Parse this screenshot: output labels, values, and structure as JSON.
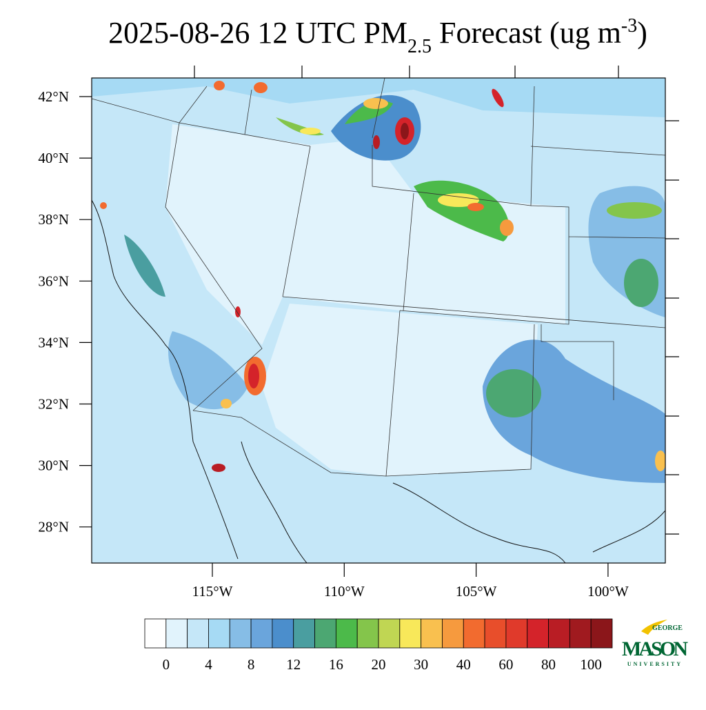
{
  "title": {
    "main": "2025-08-26 12 UTC PM",
    "sub": "2.5",
    "rest": " Forecast (ug m",
    "sup": "-3",
    "end": ")"
  },
  "map": {
    "lat_labels": [
      "42°N",
      "40°N",
      "38°N",
      "36°N",
      "34°N",
      "32°N",
      "30°N",
      "28°N"
    ],
    "lon_labels": [
      "115°W",
      "110°W",
      "105°W",
      "100°W"
    ]
  },
  "colorbar": {
    "labels": [
      0,
      4,
      8,
      12,
      16,
      20,
      30,
      40,
      60,
      80,
      100
    ],
    "colors": [
      "#ffffff",
      "#e1f3fc",
      "#c5e7f8",
      "#a6daf4",
      "#86bde6",
      "#6aa5dc",
      "#4b8ecc",
      "#4a9ea0",
      "#4ca772",
      "#4cba4a",
      "#84c54b",
      "#c0d653",
      "#f8e85a",
      "#f9c04f",
      "#f69a3e",
      "#f26b2f",
      "#e84e2b",
      "#e03a2b",
      "#d4232a",
      "#b91d24",
      "#a01a1f",
      "#8b161a"
    ]
  },
  "logo": {
    "top": "GEORGE",
    "main": "MASON",
    "bottom": "UNIVERSITY"
  }
}
